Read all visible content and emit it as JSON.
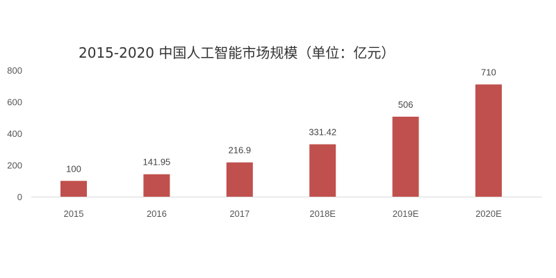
{
  "chart_data": {
    "type": "bar",
    "title": "2015-2020 中国人工智能市场规模（单位：亿元）",
    "categories": [
      "2015",
      "2016",
      "2017",
      "2018E",
      "2019E",
      "2020E"
    ],
    "values": [
      100,
      141.95,
      216.9,
      331.42,
      506,
      710
    ],
    "value_labels": [
      "100",
      "141.95",
      "216.9",
      "331.42",
      "506",
      "710"
    ],
    "ylim": [
      0,
      800
    ],
    "yticks": [
      0,
      200,
      400,
      600,
      800
    ],
    "ytick_labels": [
      "0",
      "200",
      "400",
      "600",
      "800"
    ],
    "xlabel": "",
    "ylabel": "",
    "grid": false,
    "legend": "none",
    "bar_color": "#c0504d",
    "axis_color": "#d9d9d9"
  }
}
